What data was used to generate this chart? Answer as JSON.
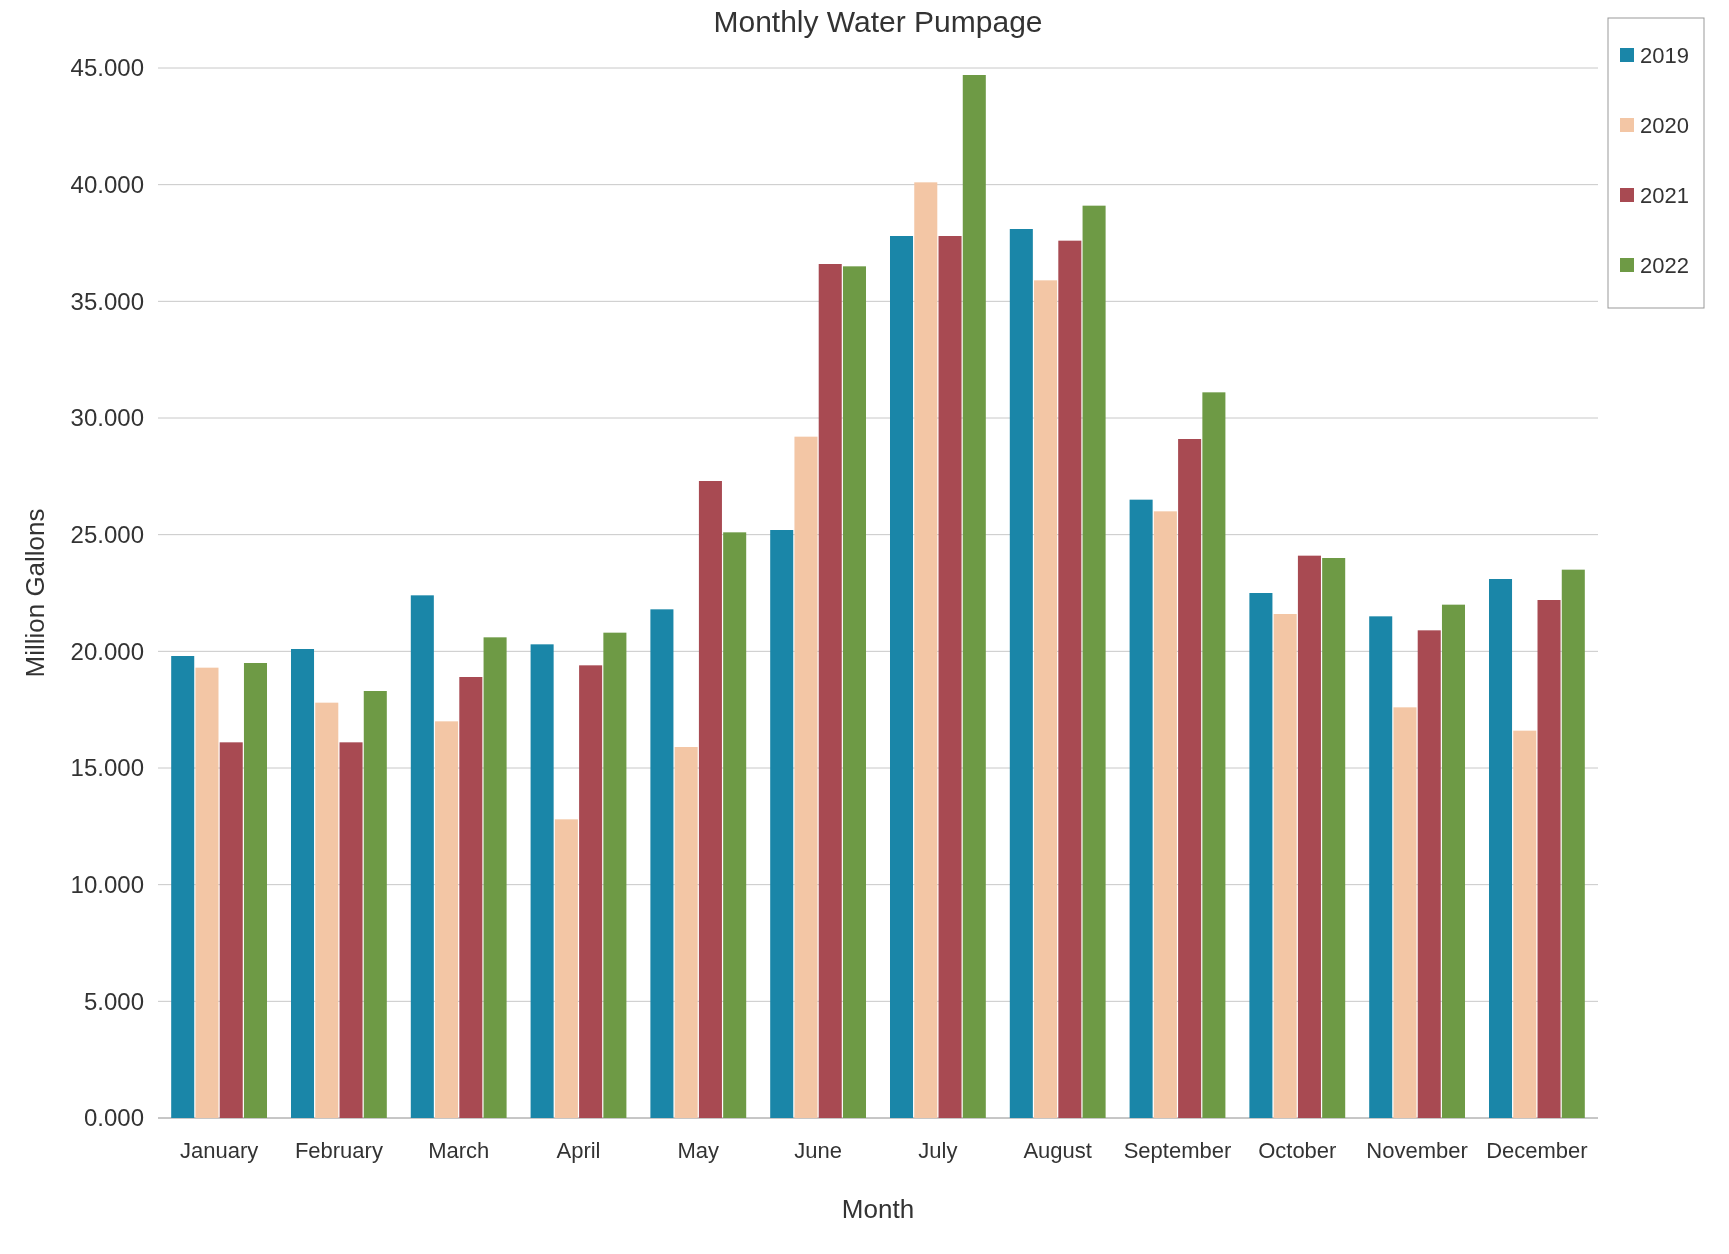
{
  "chart_data": {
    "type": "bar",
    "title": "Monthly Water Pumpage",
    "xlabel": "Month",
    "ylabel": "Million Gallons",
    "categories": [
      "January",
      "February",
      "March",
      "April",
      "May",
      "June",
      "July",
      "August",
      "September",
      "October",
      "November",
      "December"
    ],
    "series": [
      {
        "name": "2019",
        "color": "#1a86a8",
        "values": [
          19.8,
          20.1,
          22.4,
          20.3,
          21.8,
          25.2,
          37.8,
          38.1,
          26.5,
          22.5,
          21.5,
          23.1
        ]
      },
      {
        "name": "2020",
        "color": "#f3c6a5",
        "values": [
          19.3,
          17.8,
          17.0,
          12.8,
          15.9,
          29.2,
          40.1,
          35.9,
          26.0,
          21.6,
          17.6,
          16.6
        ]
      },
      {
        "name": "2021",
        "color": "#a84a52",
        "values": [
          16.1,
          16.1,
          18.9,
          19.4,
          27.3,
          36.6,
          37.8,
          37.6,
          29.1,
          24.1,
          20.9,
          22.2
        ]
      },
      {
        "name": "2022",
        "color": "#6e9a45",
        "values": [
          19.5,
          18.3,
          20.6,
          20.8,
          25.1,
          36.5,
          44.7,
          39.1,
          31.1,
          24.0,
          22.0,
          23.5
        ]
      }
    ],
    "ylim": [
      0,
      45
    ],
    "yticks": [
      {
        "value": 0,
        "label": "0.000"
      },
      {
        "value": 5,
        "label": "5.000"
      },
      {
        "value": 10,
        "label": "10.000"
      },
      {
        "value": 15,
        "label": "15.000"
      },
      {
        "value": 20,
        "label": "20.000"
      },
      {
        "value": 25,
        "label": "25.000"
      },
      {
        "value": 30,
        "label": "30.000"
      },
      {
        "value": 35,
        "label": "35.000"
      },
      {
        "value": 40,
        "label": "40.000"
      },
      {
        "value": 45,
        "label": "45.000"
      }
    ],
    "grid": "y",
    "legend": "top right"
  }
}
